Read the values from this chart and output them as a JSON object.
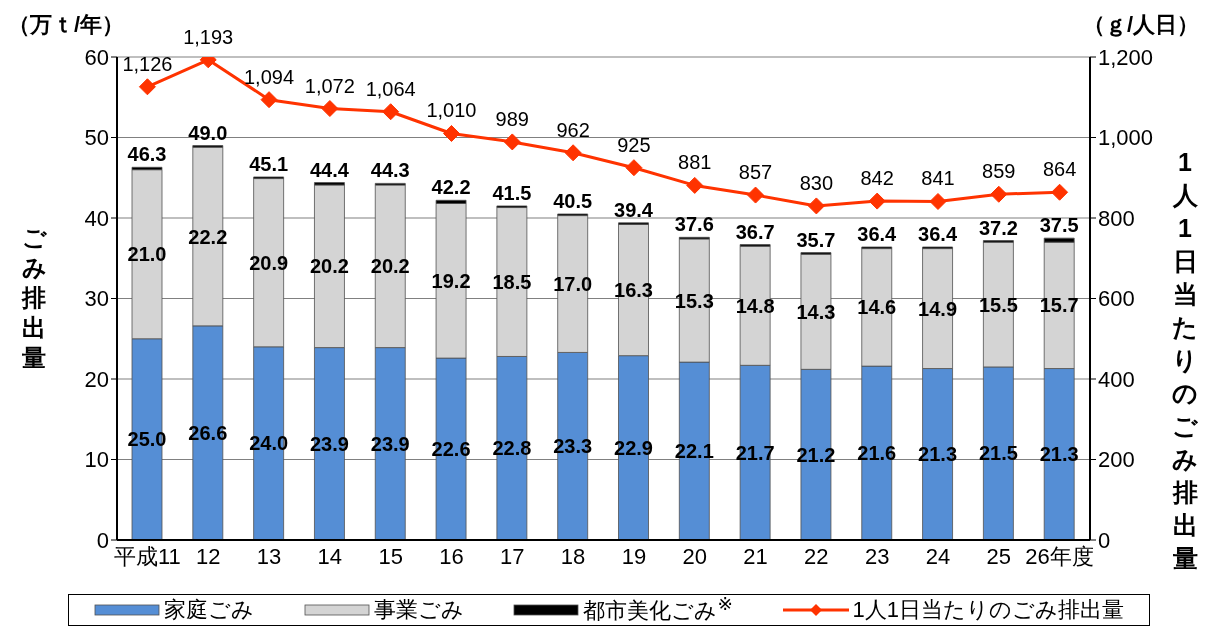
{
  "chart_data": {
    "type": "bar",
    "stacked": true,
    "categories": [
      "平成11",
      "12",
      "13",
      "14",
      "15",
      "16",
      "17",
      "18",
      "19",
      "20",
      "21",
      "22",
      "23",
      "24",
      "25",
      "26年度"
    ],
    "series": [
      {
        "name": "家庭ごみ",
        "color": "#558ed5",
        "values": [
          25.0,
          26.6,
          24.0,
          23.9,
          23.9,
          22.6,
          22.8,
          23.3,
          22.9,
          22.1,
          21.7,
          21.2,
          21.6,
          21.3,
          21.5,
          21.3
        ],
        "value_labels": [
          "25.0",
          "26.6",
          "24.0",
          "23.9",
          "23.9",
          "22.6",
          "22.8",
          "23.3",
          "22.9",
          "22.1",
          "21.7",
          "21.2",
          "21.6",
          "21.3",
          "21.5",
          "21.3"
        ]
      },
      {
        "name": "事業ごみ",
        "color": "#d4d4d4",
        "values": [
          21.0,
          22.2,
          20.9,
          20.2,
          20.2,
          19.2,
          18.5,
          17.0,
          16.3,
          15.3,
          14.8,
          14.3,
          14.6,
          14.9,
          15.5,
          15.7
        ],
        "value_labels": [
          "21.0",
          "22.2",
          "20.9",
          "20.2",
          "20.2",
          "19.2",
          "18.5",
          "17.0",
          "16.3",
          "15.3",
          "14.8",
          "14.3",
          "14.6",
          "14.9",
          "15.5",
          "15.7"
        ]
      },
      {
        "name": "都市美化ごみ$^{※}$",
        "color": "#000000",
        "values": [
          0.3,
          0.2,
          0.2,
          0.3,
          0.2,
          0.4,
          0.2,
          0.2,
          0.2,
          0.2,
          0.2,
          0.2,
          0.2,
          0.2,
          0.2,
          0.5
        ]
      },
      {
        "name": "1人1日当たりのごみ排出量",
        "type": "line",
        "axis": "y2",
        "color": "#ff3300",
        "values": [
          1126,
          1193,
          1094,
          1072,
          1064,
          1010,
          989,
          962,
          925,
          881,
          857,
          830,
          842,
          841,
          859,
          864
        ],
        "value_labels": [
          "1,126",
          "1,193",
          "1,094",
          "1,072",
          "1,064",
          "1,010",
          "989",
          "962",
          "925",
          "881",
          "857",
          "830",
          "842",
          "841",
          "859",
          "864"
        ]
      }
    ],
    "totals": [
      "46.3",
      "49.0",
      "45.1",
      "44.4",
      "44.3",
      "42.2",
      "41.5",
      "40.5",
      "39.4",
      "37.6",
      "36.7",
      "35.7",
      "36.4",
      "36.4",
      "37.2",
      "37.5"
    ],
    "ylim": [
      0,
      60
    ],
    "yticks": [
      0,
      10,
      20,
      30,
      40,
      50,
      60
    ],
    "y2lim": [
      0,
      1200
    ],
    "y2ticks": [
      0,
      200,
      400,
      600,
      800,
      {
        "value": 1000,
        "label": "1,000"
      },
      {
        "value": 1200,
        "label": "1,200"
      }
    ],
    "ylabel": "ごみ排出量",
    "y2label": "1人1日当たりのごみ排出量",
    "annotations": [
      "（万ｔ/年）",
      "（ｇ/人日）"
    ],
    "grid": "y",
    "legend": "bottom",
    "marker": "diamond"
  }
}
